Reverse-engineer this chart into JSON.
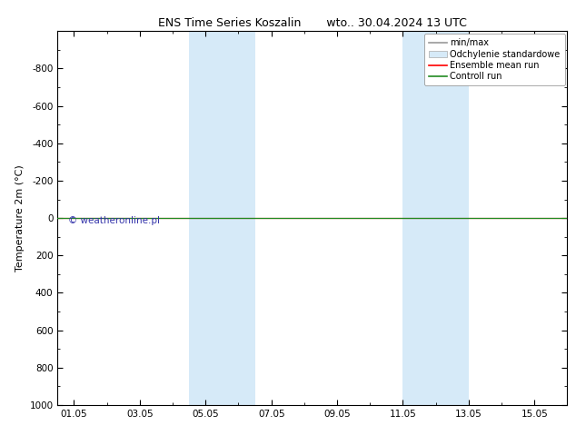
{
  "title": "ENS Time Series Koszalin       wto.. 30.04.2024 13 UTC",
  "ylabel": "Temperature 2m (°C)",
  "ylim": [
    -1000,
    1000
  ],
  "yticks": [
    -800,
    -600,
    -400,
    -200,
    0,
    200,
    400,
    600,
    800,
    1000
  ],
  "xtick_labels": [
    "01.05",
    "03.05",
    "05.05",
    "07.05",
    "09.05",
    "11.05",
    "13.05",
    "15.05"
  ],
  "xtick_positions": [
    0,
    2,
    4,
    6,
    8,
    10,
    12,
    14
  ],
  "xlim": [
    -0.5,
    15.0
  ],
  "shaded_bands": [
    {
      "x_start": 3.5,
      "x_end": 5.5,
      "color": "#d6eaf8",
      "alpha": 1.0
    },
    {
      "x_start": 10.0,
      "x_end": 12.0,
      "color": "#d6eaf8",
      "alpha": 1.0
    }
  ],
  "horizontal_line_y": 0,
  "line_color_ensemble": "#ff0000",
  "line_color_control": "#228b22",
  "watermark": "© weatheronline.pl",
  "watermark_color": "#3333aa",
  "legend_items": [
    {
      "label": "min/max",
      "color": "#999999",
      "lw": 1.2
    },
    {
      "label": "Odchylenie standardowe",
      "color": "#d6eaf8",
      "lw": 8
    },
    {
      "label": "Ensemble mean run",
      "color": "#ff0000",
      "lw": 1.2
    },
    {
      "label": "Controll run",
      "color": "#228b22",
      "lw": 1.2
    }
  ],
  "bg_color": "#ffffff",
  "plot_bg_color": "#ffffff",
  "border_color": "#000000",
  "font_size_title": 9,
  "font_size_axis": 8,
  "font_size_legend": 7,
  "font_size_ticks": 7.5,
  "font_size_watermark": 7.5
}
